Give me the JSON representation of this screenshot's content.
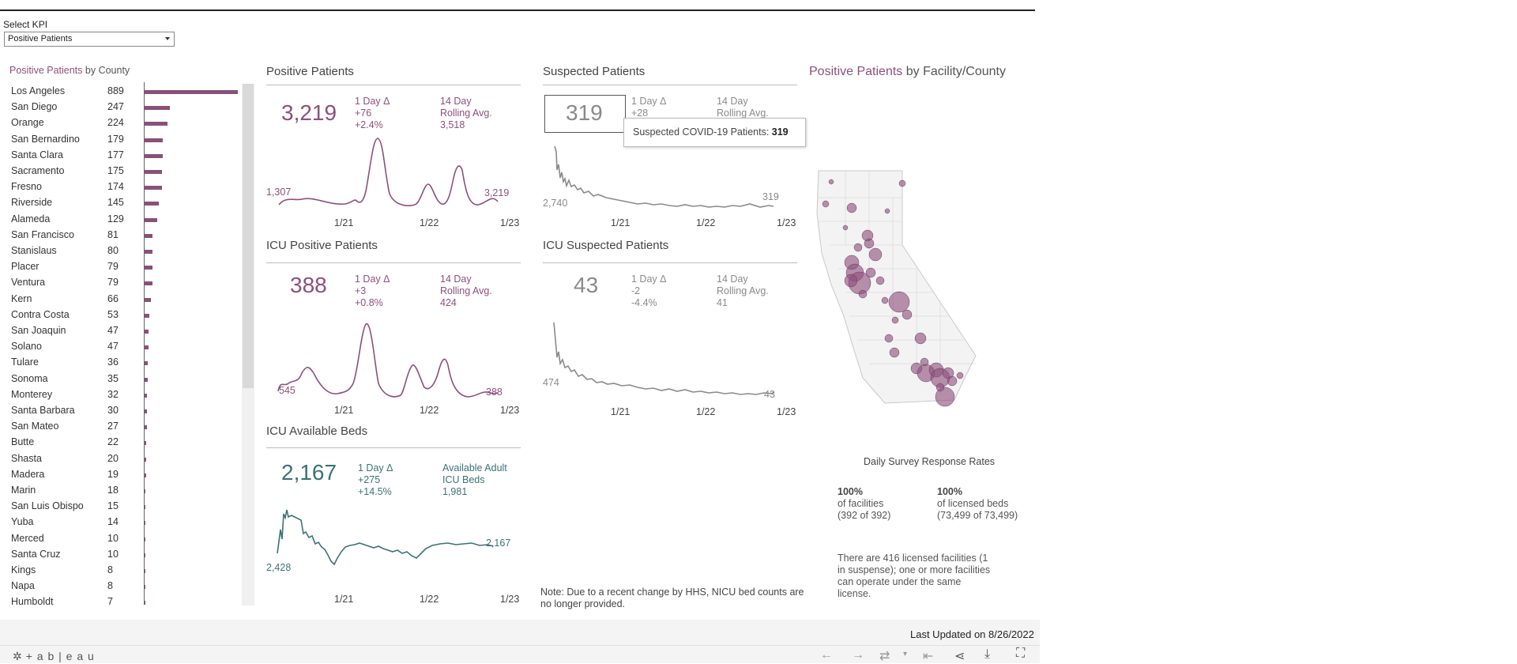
{
  "kpi": {
    "label": "Select KPI",
    "selected": "Positive Patients"
  },
  "county": {
    "title_accent": "Positive Patients",
    "title_rest": " by County",
    "rows": [
      {
        "name": "Los Angeles",
        "value": 889
      },
      {
        "name": "San Diego",
        "value": 247
      },
      {
        "name": "Orange",
        "value": 224
      },
      {
        "name": "San Bernardino",
        "value": 179
      },
      {
        "name": "Santa Clara",
        "value": 177
      },
      {
        "name": "Sacramento",
        "value": 175
      },
      {
        "name": "Fresno",
        "value": 174
      },
      {
        "name": "Riverside",
        "value": 145
      },
      {
        "name": "Alameda",
        "value": 129
      },
      {
        "name": "San Francisco",
        "value": 81
      },
      {
        "name": "Stanislaus",
        "value": 80
      },
      {
        "name": "Placer",
        "value": 79
      },
      {
        "name": "Ventura",
        "value": 79
      },
      {
        "name": "Kern",
        "value": 66
      },
      {
        "name": "Contra Costa",
        "value": 53
      },
      {
        "name": "San Joaquin",
        "value": 47
      },
      {
        "name": "Solano",
        "value": 47
      },
      {
        "name": "Tulare",
        "value": 36
      },
      {
        "name": "Sonoma",
        "value": 35
      },
      {
        "name": "Monterey",
        "value": 32
      },
      {
        "name": "Santa Barbara",
        "value": 30
      },
      {
        "name": "San Mateo",
        "value": 27
      },
      {
        "name": "Butte",
        "value": 22
      },
      {
        "name": "Shasta",
        "value": 20
      },
      {
        "name": "Madera",
        "value": 19
      },
      {
        "name": "Marin",
        "value": 18
      },
      {
        "name": "San Luis Obispo",
        "value": 15
      },
      {
        "name": "Yuba",
        "value": 14
      },
      {
        "name": "Merced",
        "value": 10
      },
      {
        "name": "Santa Cruz",
        "value": 10
      },
      {
        "name": "Kings",
        "value": 8
      },
      {
        "name": "Napa",
        "value": 8
      },
      {
        "name": "Humboldt",
        "value": 7
      }
    ]
  },
  "panels": {
    "pos": {
      "title": "Positive Patients",
      "big": "3,219",
      "delta_label": "1 Day Δ",
      "delta_abs": "+76",
      "delta_pct": "+2.4%",
      "roll_l1": "14 Day",
      "roll_l2": "Rolling Avg.",
      "roll_val": "3,518",
      "start": "1,307",
      "end": "3,219",
      "color": "#8e4f7c"
    },
    "susp": {
      "title": "Suspected Patients",
      "big": "319",
      "delta_label": "1 Day Δ",
      "delta_abs": "+28",
      "roll_l1": "14 Day",
      "roll_l2": "Rolling Avg.",
      "start": "2,740",
      "end": "319",
      "color": "#8a8a8a"
    },
    "icupos": {
      "title": "ICU Positive Patients",
      "big": "388",
      "delta_label": "1 Day Δ",
      "delta_abs": "+3",
      "delta_pct": "+0.8%",
      "roll_l1": "14 Day",
      "roll_l2": "Rolling Avg.",
      "roll_val": "424",
      "start": "545",
      "end": "388",
      "color": "#8e4f7c"
    },
    "icususp": {
      "title": "ICU Suspected Patients",
      "big": "43",
      "delta_label": "1 Day Δ",
      "delta_abs": "-2",
      "delta_pct": "-4.4%",
      "roll_l1": "14 Day",
      "roll_l2": "Rolling Avg.",
      "roll_val": "41",
      "start": "474",
      "end": "43",
      "color": "#8a8a8a"
    },
    "beds": {
      "title": "ICU Available Beds",
      "big": "2,167",
      "delta_label": "1 Day Δ",
      "delta_abs": "+275",
      "delta_pct": "+14.5%",
      "r1": "Available Adult",
      "r2": "ICU Beds",
      "r3": "1,981",
      "start": "2,428",
      "end": "2,167",
      "color": "#3b7275"
    }
  },
  "ticks": [
    "1/21",
    "1/22",
    "1/23"
  ],
  "tooltip": {
    "label": "Suspected COVID-19 Patients: ",
    "value": "319"
  },
  "map": {
    "title_accent": "Positive Patients",
    "title_rest": " by Facility/County"
  },
  "survey": {
    "title": "Daily Survey Response Rates",
    "fac_pct": "100%",
    "fac_l1": "of facilities",
    "fac_l2": "(392 of 392)",
    "bed_pct": "100%",
    "bed_l1": "of licensed beds",
    "bed_l2": "(73,499 of 73,499)",
    "note_l1": "There are 416 licensed facilities (1",
    "note_l2": "in suspense); one or more facilities",
    "note_l3": "can operate under the same",
    "note_l4": "license."
  },
  "nicu_note": {
    "l1": "Note: Due to a recent change by HHS, NICU bed counts are",
    "l2": "no longer provided."
  },
  "updated": "Last Updated on 8/26/2022",
  "footer": {
    "brand": "+ a b | e a u"
  },
  "colors": {
    "purple": "#8e4f7c",
    "teal": "#3b7275",
    "grey": "#8a8a8a"
  }
}
